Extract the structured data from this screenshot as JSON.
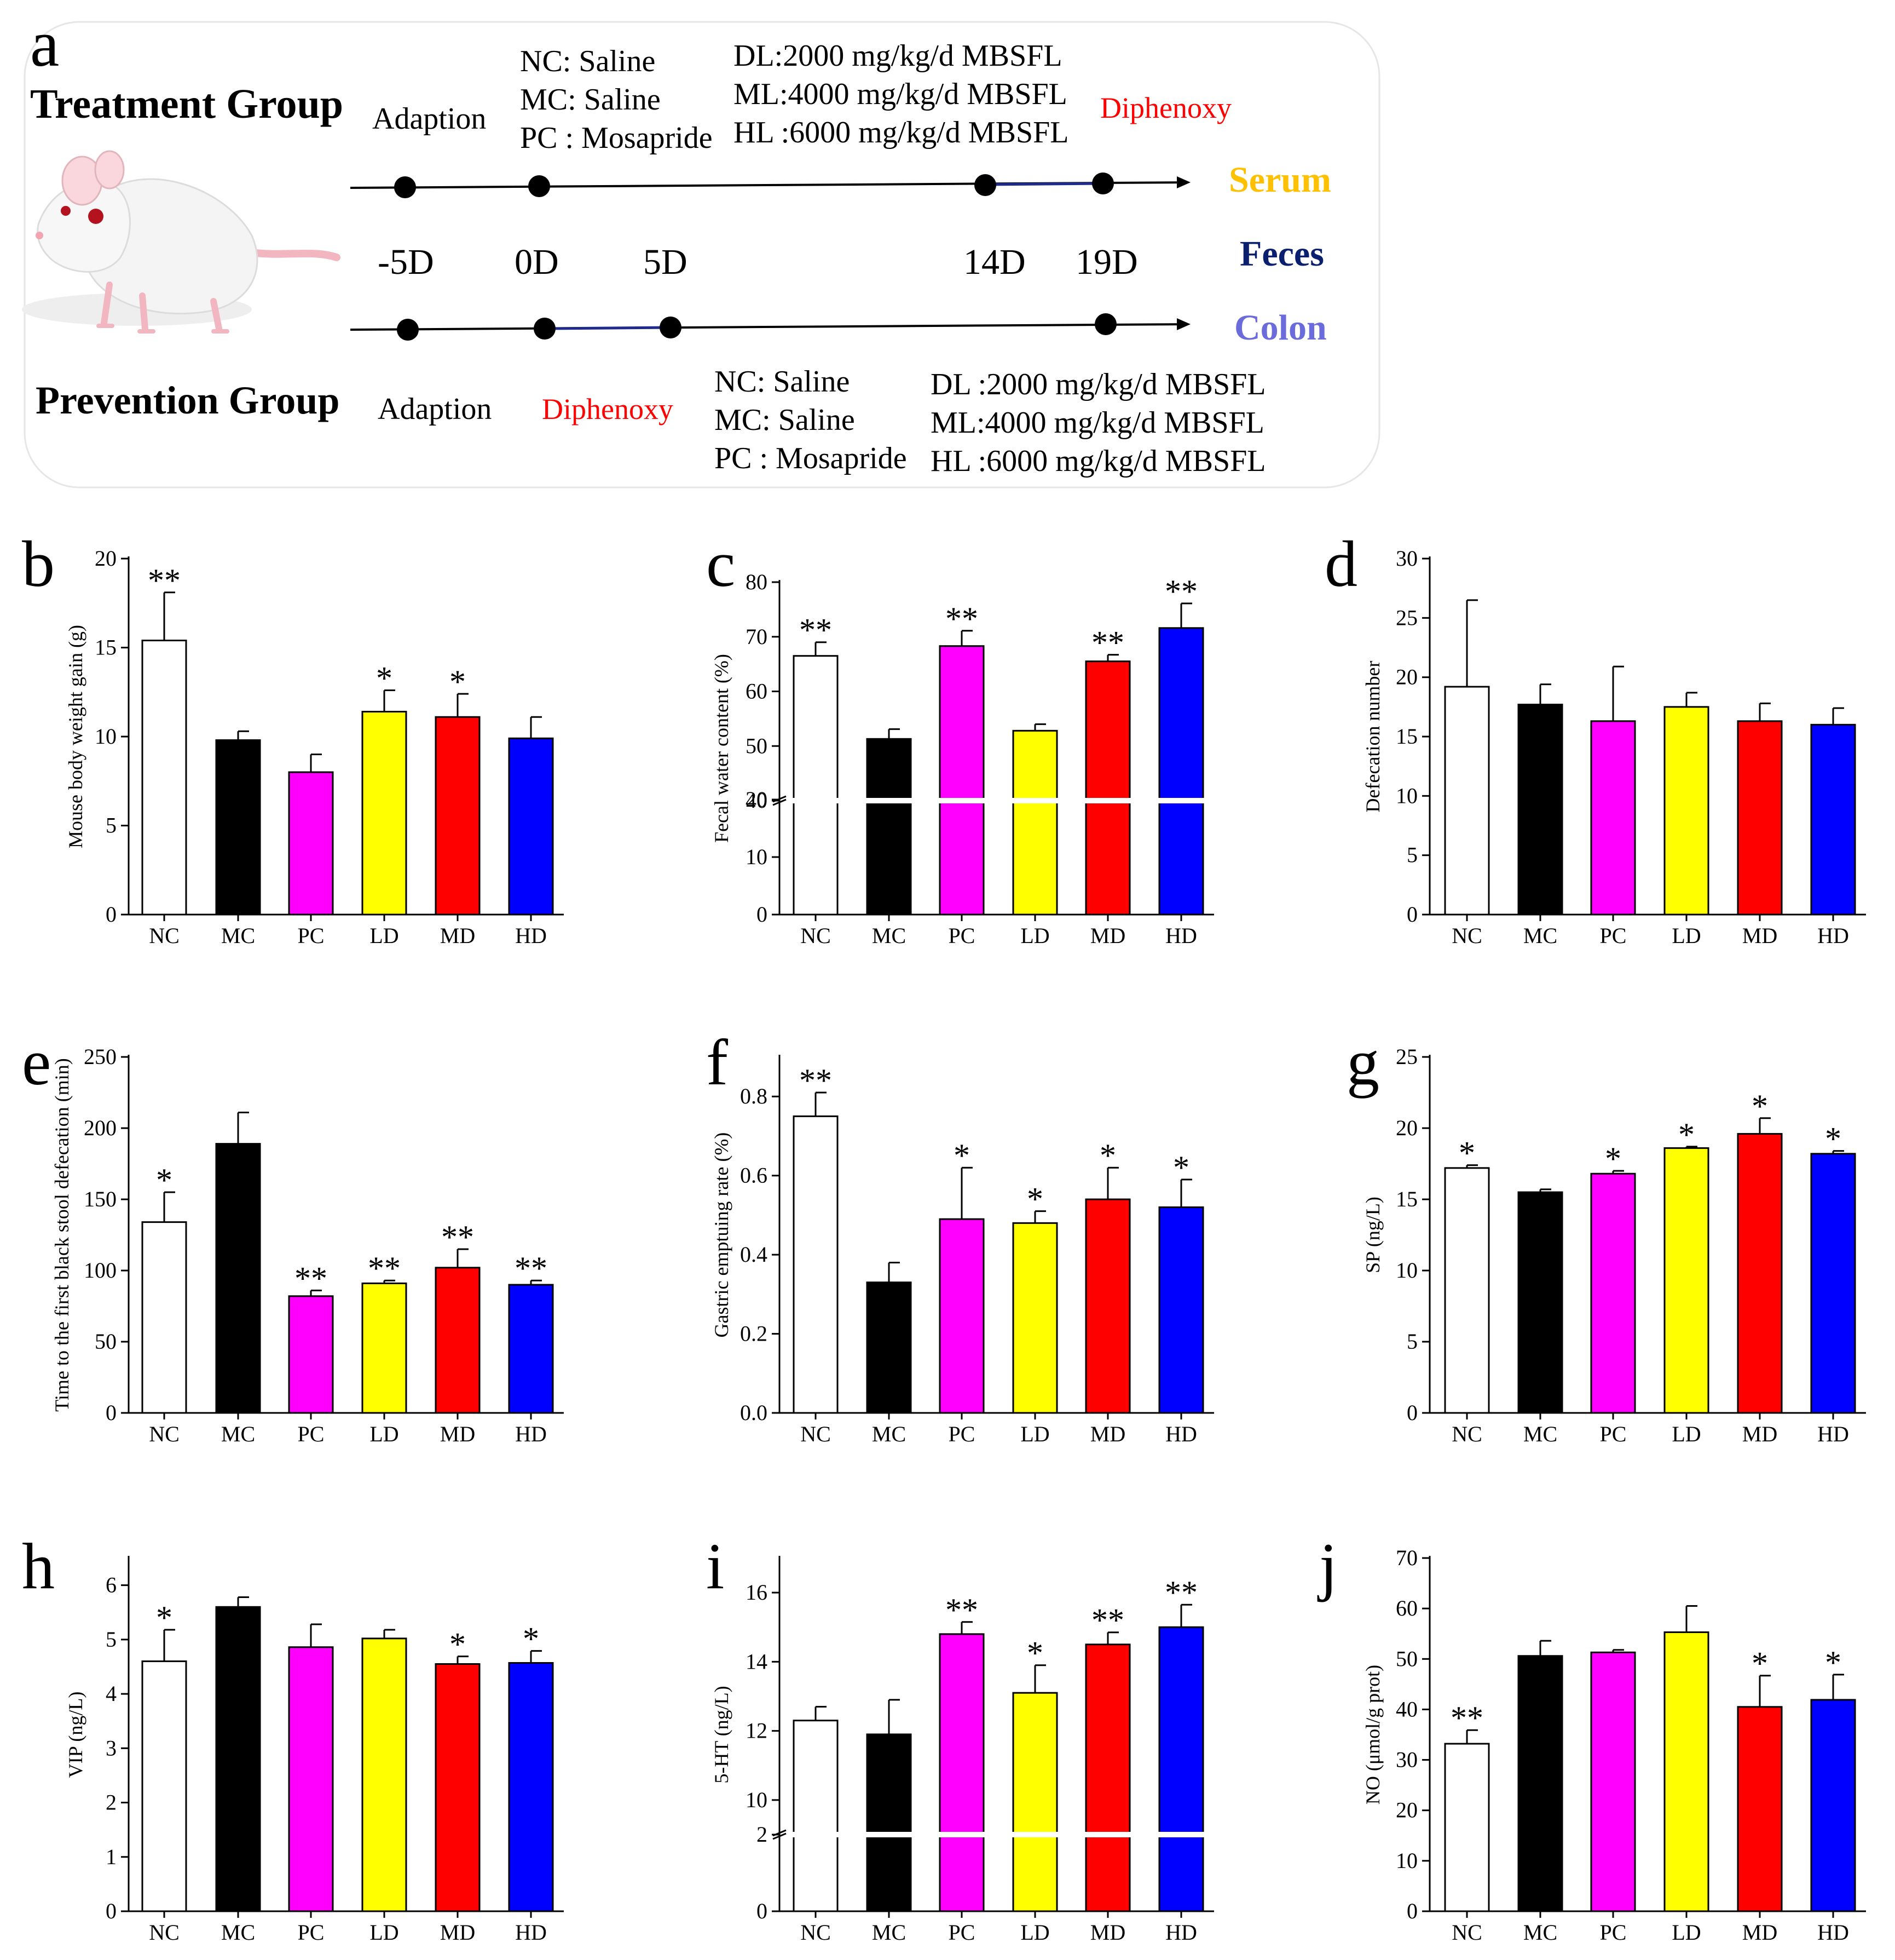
{
  "colors": {
    "NC": "#ffffff",
    "MC": "#000000",
    "PC": "#ff00ff",
    "LD": "#ffff00",
    "MD": "#ff0000",
    "HD": "#0000ff",
    "serum": "#ffc000",
    "feces": "#0a1f6e",
    "colon": "#6b6bdc",
    "diphenoxy": "#ff0000",
    "timeline_seg": "#1f2a8a"
  },
  "schematic": {
    "panel_label": "a",
    "treatment_title": "Treatment Group",
    "prevention_title": "Prevention Group",
    "treatment_adaption": "Adaption",
    "prevention_adaption": "Adaption",
    "treatment_diphenoxy": "Diphenoxy",
    "prevention_diphenoxy": "Diphenoxy",
    "treatment_controls": [
      "NC: Saline",
      "MC: Saline",
      "PC : Mosapride"
    ],
    "treatment_doses": [
      "DL:2000 mg/kg/d MBSFL",
      "ML:4000 mg/kg/d MBSFL",
      "HL :6000 mg/kg/d MBSFL"
    ],
    "prevention_controls": [
      "NC: Saline",
      "MC: Saline",
      "PC : Mosapride"
    ],
    "prevention_doses": [
      "DL :2000 mg/kg/d MBSFL",
      "ML:4000 mg/kg/d MBSFL",
      "HL :6000 mg/kg/d MBSFL"
    ],
    "days": [
      "-5D",
      "0D",
      "5D",
      "14D",
      "19D"
    ],
    "samples": [
      "Serum",
      "Feces",
      "Colon"
    ]
  },
  "chart_data": [
    {
      "panel": "b",
      "type": "bar",
      "ylabel": "Mouse body weight gain (g)",
      "categories": [
        "NC",
        "MC",
        "PC",
        "LD",
        "MD",
        "HD"
      ],
      "values": [
        15.4,
        9.8,
        8.0,
        11.4,
        11.1,
        9.9
      ],
      "errors": [
        2.7,
        0.5,
        1.0,
        1.2,
        1.3,
        1.2
      ],
      "significance": [
        "**",
        "",
        "",
        "*",
        "*",
        ""
      ],
      "ylim": [
        0,
        20
      ],
      "yticks": [
        0,
        5,
        10,
        15,
        20
      ]
    },
    {
      "panel": "c",
      "type": "bar",
      "ylabel": "Fecal water content (%)",
      "categories": [
        "NC",
        "MC",
        "PC",
        "LD",
        "MD",
        "HD"
      ],
      "values": [
        66.5,
        51.3,
        68.3,
        52.8,
        65.5,
        71.6
      ],
      "errors": [
        2.5,
        1.8,
        2.8,
        1.2,
        1.2,
        4.5
      ],
      "significance": [
        "**",
        "",
        "**",
        "",
        "**",
        "**"
      ],
      "ylim": [
        0,
        80
      ],
      "yticks": [
        0,
        10,
        20,
        40,
        50,
        60,
        70,
        80
      ],
      "axis_break": [
        20,
        40
      ]
    },
    {
      "panel": "d",
      "type": "bar",
      "ylabel": "Defecation number",
      "categories": [
        "NC",
        "MC",
        "PC",
        "LD",
        "MD",
        "HD"
      ],
      "values": [
        19.2,
        17.7,
        16.3,
        17.5,
        16.3,
        16.0
      ],
      "errors": [
        7.3,
        1.7,
        4.6,
        1.2,
        1.5,
        1.4
      ],
      "significance": [
        "",
        "",
        "",
        "",
        "",
        ""
      ],
      "ylim": [
        0,
        30
      ],
      "yticks": [
        0,
        5,
        10,
        15,
        20,
        25,
        30
      ]
    },
    {
      "panel": "e",
      "type": "bar",
      "ylabel": "Time to the first black stool defecation (min)",
      "categories": [
        "NC",
        "MC",
        "PC",
        "LD",
        "MD",
        "HD"
      ],
      "values": [
        134,
        189,
        82,
        91,
        102,
        90
      ],
      "errors": [
        21,
        22,
        4,
        2,
        13,
        3
      ],
      "significance": [
        "*",
        "",
        "**",
        "**",
        "**",
        "**"
      ],
      "ylim": [
        0,
        250
      ],
      "yticks": [
        0,
        50,
        100,
        150,
        200,
        250
      ]
    },
    {
      "panel": "f",
      "type": "bar",
      "ylabel": "Gastric emptuing rate (%)",
      "categories": [
        "NC",
        "MC",
        "PC",
        "LD",
        "MD",
        "HD"
      ],
      "values": [
        0.75,
        0.33,
        0.49,
        0.48,
        0.54,
        0.52
      ],
      "errors": [
        0.06,
        0.05,
        0.13,
        0.03,
        0.08,
        0.07
      ],
      "significance": [
        "**",
        "",
        "*",
        "*",
        "*",
        "*"
      ],
      "ylim": [
        0,
        0.9
      ],
      "yticks": [
        "0.0",
        "0.2",
        "0.4",
        "0.6",
        "0.8"
      ]
    },
    {
      "panel": "g",
      "type": "bar",
      "ylabel": "SP (ng/L)",
      "categories": [
        "NC",
        "MC",
        "PC",
        "LD",
        "MD",
        "HD"
      ],
      "values": [
        17.2,
        15.5,
        16.8,
        18.6,
        19.6,
        18.2
      ],
      "errors": [
        0.2,
        0.2,
        0.2,
        0.1,
        1.1,
        0.2
      ],
      "significance": [
        "*",
        "",
        "*",
        "*",
        "*",
        "*"
      ],
      "ylim": [
        0,
        25
      ],
      "yticks": [
        0,
        5,
        10,
        15,
        20,
        25
      ]
    },
    {
      "panel": "h",
      "type": "bar",
      "ylabel": "VIP (ng/L)",
      "categories": [
        "NC",
        "MC",
        "PC",
        "LD",
        "MD",
        "HD"
      ],
      "values": [
        4.6,
        5.6,
        4.86,
        5.02,
        4.55,
        4.57
      ],
      "errors": [
        0.58,
        0.18,
        0.42,
        0.16,
        0.14,
        0.22
      ],
      "significance": [
        "*",
        "",
        "",
        "",
        "*",
        "*"
      ],
      "ylim": [
        0,
        6.5
      ],
      "yticks": [
        0,
        1,
        2,
        3,
        4,
        5,
        6
      ]
    },
    {
      "panel": "i",
      "type": "bar",
      "ylabel": "5-HT (ng/L)",
      "categories": [
        "NC",
        "MC",
        "PC",
        "LD",
        "MD",
        "HD"
      ],
      "values": [
        12.3,
        11.9,
        14.8,
        13.1,
        14.5,
        15.0
      ],
      "errors": [
        0.4,
        1.0,
        0.35,
        0.8,
        0.35,
        0.65
      ],
      "significance": [
        "",
        "",
        "**",
        "*",
        "**",
        "**"
      ],
      "ylim": [
        0,
        17
      ],
      "yticks": [
        0,
        2,
        10,
        12,
        14,
        16
      ],
      "axis_break": [
        2,
        9
      ]
    },
    {
      "panel": "j",
      "type": "bar",
      "ylabel": "NO (μmol/g prot)",
      "categories": [
        "NC",
        "MC",
        "PC",
        "LD",
        "MD",
        "HD"
      ],
      "values": [
        33.2,
        50.6,
        51.3,
        55.3,
        40.5,
        41.9
      ],
      "errors": [
        2.7,
        3.0,
        0.5,
        5.2,
        6.2,
        5.0
      ],
      "significance": [
        "**",
        "",
        "",
        "",
        "*",
        "*"
      ],
      "ylim": [
        0,
        70
      ],
      "yticks": [
        0,
        10,
        20,
        30,
        40,
        50,
        60,
        70
      ]
    }
  ]
}
